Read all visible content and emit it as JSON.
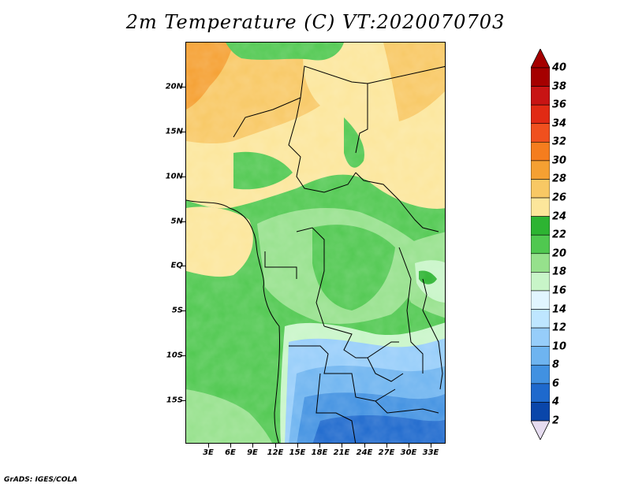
{
  "title": "2m Temperature (C) VT:2020070703",
  "lat_labels": [
    "20N",
    "15N",
    "10N",
    "5N",
    "EQ",
    "5S",
    "10S",
    "15S"
  ],
  "lon_labels": [
    "3E",
    "6E",
    "9E",
    "12E",
    "15E",
    "18E",
    "21E",
    "24E",
    "27E",
    "30E",
    "33E"
  ],
  "colorbar": {
    "labels": [
      "40",
      "38",
      "36",
      "34",
      "32",
      "30",
      "28",
      "26",
      "24",
      "22",
      "20",
      "18",
      "16",
      "14",
      "12",
      "10",
      "8",
      "6",
      "4",
      "2"
    ],
    "colors": [
      "#a50000",
      "#c81414",
      "#e12a14",
      "#f0501e",
      "#f57d1e",
      "#f5a032",
      "#f8c864",
      "#fce69b",
      "#2db432",
      "#50c850",
      "#96e18c",
      "#c8f5c8",
      "#e1f5ff",
      "#bee6ff",
      "#96cdfa",
      "#6eb4f0",
      "#4191e1",
      "#1e69cd",
      "#0a46aa",
      "#0a1e78"
    ],
    "over_color": "#a50000",
    "under_color": "#e6dcf0"
  },
  "credit": "GrADS: IGES/COLA"
}
